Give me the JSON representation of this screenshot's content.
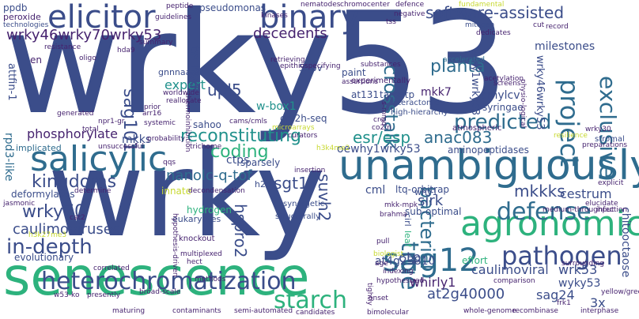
{
  "palette": {
    "navy": "#3b4d8a",
    "indigo": "#423f85",
    "purple": "#46236f",
    "blue": "#2f6c8e",
    "teal": "#21918c",
    "green": "#2db27d",
    "lime": "#7ad151",
    "yellow": "#c8d932"
  },
  "words": [
    "wrky53",
    "wrky",
    "senescence",
    "unambiguously",
    "salicylic",
    "binary",
    "elicitor",
    "agronomic",
    "sag12",
    "pathogen",
    "heterochromatization",
    "defense",
    "project",
    "starch",
    "exclusive",
    "true",
    "bacterial",
    "reconstituting",
    "wrky46wrky70wrky53",
    "software-assisted",
    "kingdoms",
    "in-depth",
    "crosstalk",
    "wrky70",
    "caulimoviruses",
    "predicted",
    "esr/esp",
    "anac083",
    "coding",
    "sag101",
    "phosphorylate",
    "mkkks",
    "upl5",
    "decedents",
    "planta",
    "sgt1",
    "suvh2",
    "nanolc-q-tof",
    "hspro2",
    "ctp",
    "whirly1",
    "sirk",
    "caulimoviral",
    "wrk53",
    "wyky53",
    "cestrum",
    "milestones",
    "at4g23810",
    "at2g40000",
    "sag24",
    "3x",
    "cml",
    "mkk7",
    "w-box1",
    "expert",
    "tw-hydr",
    "53ov",
    "cry2h-seq",
    "at131",
    "cmylcv",
    "syringae",
    "targetp",
    "why1wrky53",
    "wrky46wrky53",
    "oewhy1wrky53",
    "aminopeptidases",
    "chitooctaose",
    "deformylases",
    "rpd3-like",
    "ctps",
    "mkks",
    "sahoo",
    "attfin-1",
    "peroxide",
    "implicated",
    "paint",
    "evolutionary",
    "innate",
    "gnnnaaatt",
    "pseudomonas",
    "ppdb",
    "en",
    "crosstalk2",
    "h2o2",
    "ltq-orbitrap",
    "sub-optimal",
    "evolutionary2",
    "effort",
    "sparsely",
    "why1",
    "hydrogen",
    "eukaryotes",
    "synergetic",
    "knockout",
    "structurally",
    "interactome",
    "high-hierarchy",
    "stromal",
    "atmospheric",
    "experimentally"
  ],
  "small_words": [
    "peptide",
    "nematodes",
    "chromocenter",
    "defence",
    "negative",
    "fundamental",
    "guidelines",
    "kinases",
    "tss",
    "mitogen",
    "dedicates",
    "cut",
    "resistance",
    "summary",
    "oligo",
    "hda9",
    "record",
    "accelerated",
    "acetylation",
    "technologies",
    "retrieving",
    "substances",
    "epithiospecifying",
    "assertions",
    "worldwide",
    "reallocate",
    "prior",
    "arr16",
    "npr1-gr",
    "generated",
    "total",
    "cams/cmls",
    "microarrays",
    "curators",
    "thermoinhibition",
    "systemic",
    "probability",
    "unsuccessful",
    "trichome",
    "qqs",
    "determine",
    "jasmonic",
    "cat2",
    "h3k27me3",
    "h3k4me2",
    "decondensation",
    "mkk-mpk",
    "brahma",
    "multiplexed",
    "hect",
    "correlated",
    "hypothesis-driven",
    "w53-ko",
    "presently",
    "broad-scale",
    "contaminants",
    "semi-automated",
    "candidates",
    "bimolecular",
    "whole-genome",
    "recombinase",
    "interphase",
    "frk1",
    "yellow/green",
    "comparison",
    "surrounding",
    "medium-throughput",
    "infection",
    "elucidate",
    "explicit",
    "preparations",
    "wrky30",
    "resilience",
    "screens",
    "physio-logical",
    "co2/n",
    "insertion",
    "indexing",
    "biologist",
    "hypothesized",
    "pull",
    "age",
    "onset",
    "tightly",
    "methods",
    "maturing",
    "leaf",
    "cirl",
    "s-mmo",
    "cre"
  ]
}
